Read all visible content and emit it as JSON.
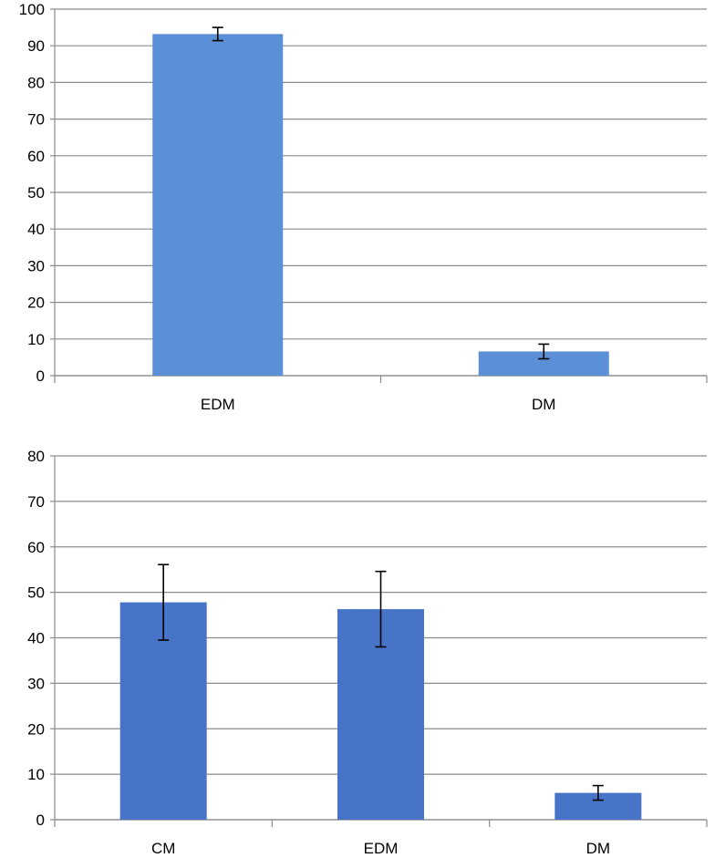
{
  "chart_data": [
    {
      "type": "bar",
      "categories": [
        "EDM",
        "DM"
      ],
      "values": [
        93.2,
        6.6
      ],
      "errors": [
        1.8,
        2.0
      ],
      "ylim": [
        0,
        100
      ],
      "yticks": [
        "0",
        "10",
        "20",
        "30",
        "40",
        "50",
        "60",
        "70",
        "80",
        "90",
        "100"
      ],
      "title": "",
      "xlabel": "",
      "ylabel": "",
      "grid": true,
      "bar_color": "#5b8fd6"
    },
    {
      "type": "bar",
      "categories": [
        "CM",
        "EDM",
        "DM"
      ],
      "values": [
        47.8,
        46.3,
        5.9
      ],
      "errors": [
        8.3,
        8.3,
        1.6
      ],
      "ylim": [
        0,
        80
      ],
      "yticks": [
        "0",
        "10",
        "20",
        "30",
        "40",
        "50",
        "60",
        "70",
        "80"
      ],
      "title": "",
      "xlabel": "",
      "ylabel": "",
      "grid": true,
      "bar_color": "#4874c8"
    }
  ]
}
